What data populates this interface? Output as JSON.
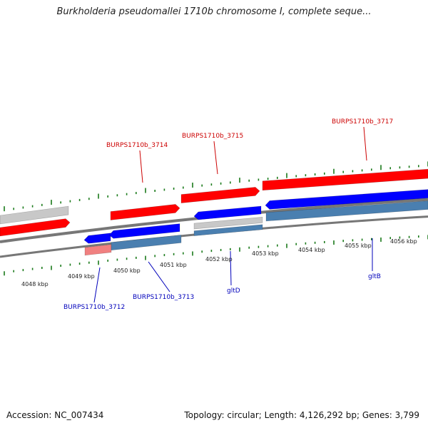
{
  "title": "Burkholderia pseudomallei 1710b chromosome I, complete seque...",
  "footer": {
    "accession": "Accession: NC_007434",
    "summary": "Topology: circular; Length: 4,126,292 bp; Genes: 3,799"
  },
  "colors": {
    "forward_gene": "#ff0000",
    "reverse_gene": "#0000ff",
    "forward_other": "#c8c8c8",
    "reverse_other": "#4a7fb0",
    "forward_pink": "#f08080",
    "tick": "#1a7a1a",
    "backbone": "#777777",
    "label_forward": "#cc0000",
    "label_reverse": "#0000bb"
  },
  "ticks": [
    {
      "label": "4048 kbp"
    },
    {
      "label": "4049 kbp"
    },
    {
      "label": "4050 kbp"
    },
    {
      "label": "4051 kbp"
    },
    {
      "label": "4052 kbp"
    },
    {
      "label": "4053 kbp"
    },
    {
      "label": "4054 kbp"
    },
    {
      "label": "4055 kbp"
    },
    {
      "label": "4056 kbp"
    }
  ],
  "feature_labels": {
    "top": [
      {
        "text": "BURPS1710b_3714"
      },
      {
        "text": "BURPS1710b_3715"
      },
      {
        "text": "BURPS1710b_3717"
      }
    ],
    "bottom": [
      {
        "text": "BURPS1710b_3712"
      },
      {
        "text": "BURPS1710b_3713"
      },
      {
        "text": "gltD"
      },
      {
        "text": "gltB"
      }
    ]
  }
}
